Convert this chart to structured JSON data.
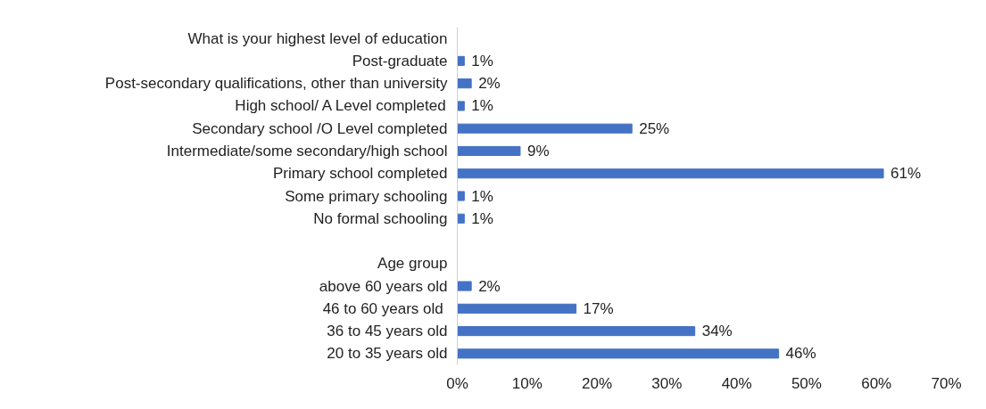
{
  "chart_data": {
    "type": "bar",
    "orientation": "horizontal",
    "categories": [
      "What is your highest level of education",
      "Post-graduate",
      "Post-secondary qualifications, other than university",
      "High school/ A Level completed",
      "Secondary school /O Level completed",
      "Intermediate/some secondary/high school",
      "Primary school completed",
      "Some primary schooling",
      "No formal schooling",
      null,
      "Age group",
      "above 60 years old",
      "46  to 60 years old",
      "36 to 45 years old",
      "20 to 35 years old"
    ],
    "series": [
      {
        "color": "#4472c4",
        "values": [
          null,
          1,
          2,
          1,
          25,
          9,
          61,
          1,
          1,
          null,
          null,
          2,
          17,
          34,
          46
        ],
        "value_labels": [
          null,
          "1%",
          "2%",
          "1%",
          "25%",
          "9%",
          "61%",
          "1%",
          "1%",
          null,
          null,
          "2%",
          "17%",
          "34%",
          "46%"
        ]
      }
    ],
    "xlim": [
      0,
      70
    ],
    "xticks": [
      {
        "value": 0,
        "label": "0%"
      },
      {
        "value": 10,
        "label": "10%"
      },
      {
        "value": 20,
        "label": "20%"
      },
      {
        "value": 30,
        "label": "30%"
      },
      {
        "value": 40,
        "label": "40%"
      },
      {
        "value": 50,
        "label": "50%"
      },
      {
        "value": 60,
        "label": "60%"
      },
      {
        "value": 70,
        "label": "70%"
      }
    ],
    "grid": false
  }
}
